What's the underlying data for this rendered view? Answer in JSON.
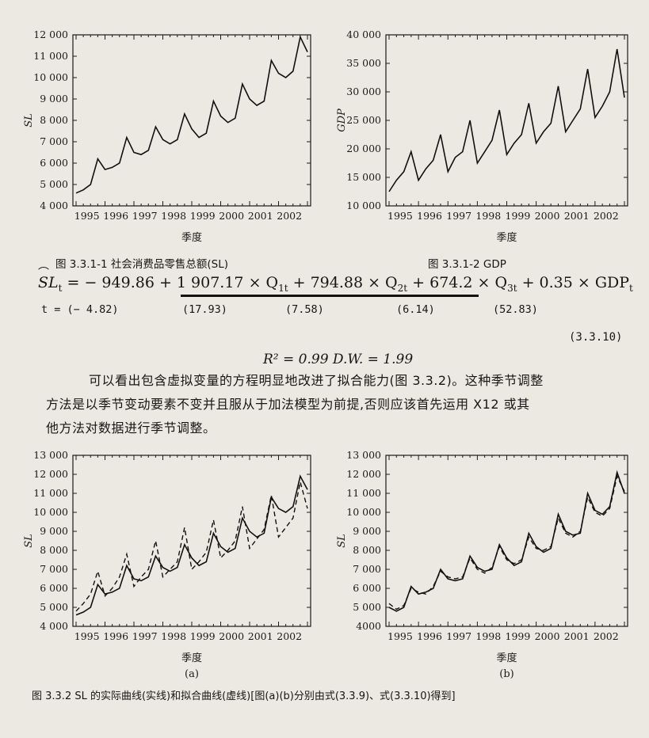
{
  "figure_top": {
    "caption_left": "图 3.3.1-1  社会消费品零售总额(SL)",
    "caption_right": "图 3.3.1-2  GDP"
  },
  "equation": {
    "lhs": "SL",
    "lhs_sub": "t",
    "rhs_terms": [
      "= − 949.86 + 1 907.17 × Q",
      "1t",
      " + 794.88 × Q",
      "2t",
      " + 674.2 × Q",
      "3t",
      " + 0.35 × GDP",
      "t"
    ],
    "t_label": "t = (− 4.82)",
    "t_values": [
      "(17.93)",
      "(7.58)",
      "(6.14)",
      "(52.83)"
    ],
    "eq_number": "(3.3.10)",
    "stats": "R² = 0.99    D.W. = 1.99"
  },
  "paragraph": {
    "line1": "可以看出包含虚拟变量的方程明显地改进了拟合能力(图 3.3.2)。这种季节调整",
    "line2": "方法是以季节变动要素不变并且服从于加法模型为前提,否则应该首先运用 X12 或其",
    "line3": "他方法对数据进行季节调整。"
  },
  "figure_bottom": {
    "sub_a": "(a)",
    "sub_b": "(b)",
    "caption": "图 3.3.2  SL 的实际曲线(实线)和拟合曲线(虚线)[图(a)(b)分别由式(3.3.9)、式(3.3.10)得到]"
  },
  "chart_data": [
    {
      "type": "line",
      "id": "sl_top",
      "xlabel": "季度",
      "ylabel": "SL",
      "ylim": [
        4000,
        12000
      ],
      "yticks": [
        "4 000",
        "5 000",
        "6 000",
        "7 000",
        "8 000",
        "9 000",
        "10 000",
        "11 000",
        "12 000"
      ],
      "xticks": [
        "1995",
        "1996",
        "1997",
        "1998",
        "1999",
        "2000",
        "2001",
        "2002"
      ],
      "x_start": 1995,
      "series": [
        {
          "style": "solid",
          "values": [
            4600,
            4750,
            5000,
            6200,
            5700,
            5800,
            6000,
            7200,
            6500,
            6400,
            6600,
            7700,
            7100,
            6900,
            7100,
            8300,
            7600,
            7200,
            7400,
            8900,
            8200,
            7900,
            8100,
            9700,
            9000,
            8700,
            8900,
            10800,
            10200,
            10000,
            10300,
            11900,
            11200
          ]
        }
      ]
    },
    {
      "type": "line",
      "id": "gdp_top",
      "xlabel": "季度",
      "ylabel": "GDP",
      "ylim": [
        10000,
        40000
      ],
      "yticks": [
        "10 000",
        "15 000",
        "20 000",
        "25 000",
        "30 000",
        "35 000",
        "40 000"
      ],
      "xticks": [
        "1995",
        "1996",
        "1997",
        "1998",
        "1999",
        "2000",
        "2001",
        "2002"
      ],
      "x_start": 1995,
      "series": [
        {
          "style": "solid",
          "values": [
            12500,
            14500,
            16000,
            19500,
            14500,
            16500,
            18000,
            22500,
            16000,
            18500,
            19500,
            25000,
            17500,
            19500,
            21500,
            26800,
            19000,
            21000,
            22500,
            28000,
            21000,
            23000,
            24500,
            31000,
            23000,
            25000,
            27000,
            34000,
            25500,
            27500,
            30000,
            37500,
            29000
          ]
        }
      ]
    },
    {
      "type": "line",
      "id": "sl_fit_a",
      "xlabel": "季度",
      "ylabel": "SL",
      "ylim": [
        4000,
        13000
      ],
      "yticks": [
        "4 000",
        "5 000",
        "6 000",
        "7 000",
        "8 000",
        "9 000",
        "10 000",
        "11 000",
        "12 000",
        "13 000"
      ],
      "xticks": [
        "1995",
        "1996",
        "1997",
        "1998",
        "1999",
        "2000",
        "2001",
        "2002"
      ],
      "x_start": 1995,
      "series": [
        {
          "style": "solid",
          "values": [
            4600,
            4750,
            5000,
            6200,
            5700,
            5800,
            6000,
            7200,
            6500,
            6400,
            6600,
            7700,
            7100,
            6900,
            7100,
            8300,
            7600,
            7200,
            7400,
            8900,
            8200,
            7900,
            8100,
            9700,
            9000,
            8700,
            8900,
            10800,
            10200,
            10000,
            10300,
            11900,
            11200
          ]
        },
        {
          "style": "dashed",
          "values": [
            4800,
            5200,
            5700,
            6900,
            5600,
            6000,
            6600,
            7800,
            6100,
            6600,
            7000,
            8500,
            6600,
            7000,
            7400,
            9200,
            7000,
            7400,
            7900,
            9600,
            7600,
            8000,
            8500,
            10300,
            8100,
            8600,
            9100,
            10900,
            8700,
            9200,
            9700,
            11600,
            10200
          ]
        }
      ]
    },
    {
      "type": "line",
      "id": "sl_fit_b",
      "xlabel": "季度",
      "ylabel": "SL",
      "ylim": [
        4000,
        13000
      ],
      "yticks": [
        "4000",
        "5 000",
        "6 000",
        "7 000",
        "8 000",
        "9 000",
        "10 000",
        "11 000",
        "12 000",
        "13 000"
      ],
      "xticks": [
        "1995",
        "1996",
        "1997",
        "1998",
        "1999",
        "2000",
        "2001",
        "2002"
      ],
      "x_start": 1995,
      "series": [
        {
          "style": "solid",
          "values": [
            5000,
            4800,
            5000,
            6100,
            5700,
            5800,
            6000,
            7000,
            6500,
            6400,
            6500,
            7700,
            7100,
            6900,
            7000,
            8300,
            7600,
            7200,
            7400,
            8900,
            8200,
            7900,
            8100,
            9900,
            9000,
            8800,
            8900,
            11000,
            10100,
            9900,
            10300,
            12100,
            11000
          ]
        },
        {
          "style": "dashed",
          "values": [
            5200,
            4900,
            5100,
            6000,
            5800,
            5700,
            6100,
            6900,
            6600,
            6500,
            6600,
            7600,
            7000,
            6800,
            7100,
            8200,
            7500,
            7300,
            7500,
            8700,
            8100,
            8000,
            8200,
            9700,
            8900,
            8700,
            9000,
            10800,
            10000,
            9800,
            10200,
            11900,
            11100
          ]
        }
      ]
    }
  ]
}
